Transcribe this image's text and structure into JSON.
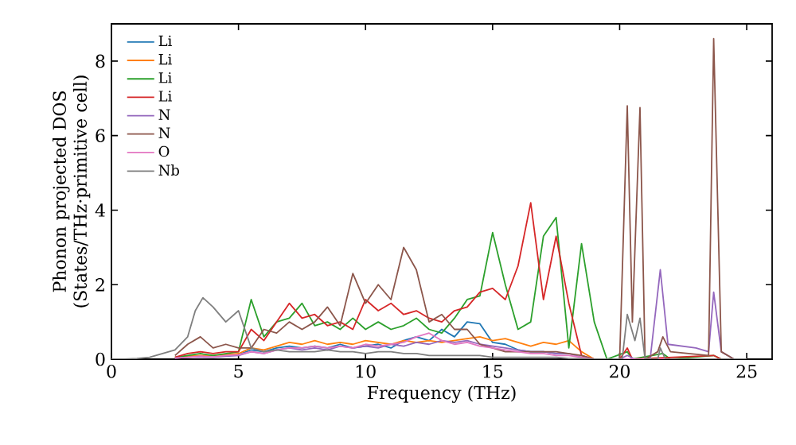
{
  "chart_data": {
    "type": "line",
    "xlabel": "Frequency (THz)",
    "ylabel": "Phonon projected DOS (States/THz·primitive cell)",
    "xlim": [
      0,
      26
    ],
    "ylim": [
      0,
      9
    ],
    "xticks": [
      0,
      5,
      10,
      15,
      20,
      25
    ],
    "yticks": [
      0,
      2,
      4,
      6,
      8
    ],
    "grid": false,
    "legend": "top left",
    "marker": "none",
    "line_style": "solid",
    "series": [
      {
        "name": "Li",
        "color": "#1f77b4",
        "x": [
          4.5,
          5,
          5.5,
          6,
          6.5,
          7,
          7.5,
          8,
          8.5,
          9,
          9.5,
          10,
          10.5,
          11,
          11.5,
          12,
          12.5,
          13,
          13.5,
          14,
          14.5,
          15,
          15.5,
          16,
          16.5,
          17,
          17.5,
          18
        ],
        "values": [
          0.1,
          0.12,
          0.25,
          0.2,
          0.3,
          0.35,
          0.3,
          0.35,
          0.3,
          0.4,
          0.3,
          0.35,
          0.4,
          0.3,
          0.5,
          0.6,
          0.5,
          0.8,
          0.6,
          1.0,
          0.95,
          0.45,
          0.4,
          0.25,
          0.2,
          0.2,
          0.15,
          0.15
        ]
      },
      {
        "name": "Li",
        "color": "#ff7f0e",
        "x": [
          2.5,
          3,
          3.5,
          4,
          4.5,
          5,
          5.5,
          6,
          6.5,
          7,
          7.5,
          8,
          8.5,
          9,
          9.5,
          10,
          10.5,
          11,
          11.5,
          12,
          12.5,
          13,
          13.5,
          14,
          14.5,
          15,
          15.5,
          16,
          16.5,
          17,
          17.5,
          18,
          18.5,
          19
        ],
        "values": [
          0.05,
          0.08,
          0.1,
          0.1,
          0.12,
          0.15,
          0.3,
          0.25,
          0.35,
          0.45,
          0.4,
          0.5,
          0.4,
          0.45,
          0.4,
          0.5,
          0.45,
          0.4,
          0.5,
          0.45,
          0.5,
          0.45,
          0.5,
          0.55,
          0.6,
          0.5,
          0.55,
          0.45,
          0.35,
          0.45,
          0.4,
          0.5,
          0.2,
          0
        ]
      },
      {
        "name": "Li",
        "color": "#2ca02c",
        "x": [
          2.5,
          3,
          3.5,
          4,
          4.5,
          5,
          5.5,
          6,
          6.5,
          7,
          7.5,
          8,
          8.5,
          9,
          9.5,
          10,
          10.5,
          11,
          11.5,
          12,
          12.5,
          13,
          13.5,
          14,
          14.5,
          15,
          15.5,
          16,
          16.5,
          17,
          17.5,
          18,
          18.5,
          19,
          19.5,
          20.3,
          20.5,
          21.7,
          22,
          23.7,
          24,
          25
        ],
        "values": [
          0.05,
          0.1,
          0.15,
          0.1,
          0.15,
          0.2,
          1.6,
          0.6,
          1.0,
          1.1,
          1.5,
          0.9,
          1.0,
          0.8,
          1.1,
          0.8,
          1.0,
          0.8,
          0.9,
          1.1,
          0.8,
          0.7,
          1.1,
          1.6,
          1.7,
          3.4,
          2.0,
          0.8,
          1.0,
          3.3,
          3.8,
          0.3,
          3.1,
          1.0,
          0,
          0.2,
          0,
          0.15,
          0,
          0.1,
          0,
          0
        ]
      },
      {
        "name": "Li",
        "color": "#d62728",
        "x": [
          2.5,
          3,
          3.5,
          4,
          4.5,
          5,
          5.5,
          6,
          6.5,
          7,
          7.5,
          8,
          8.5,
          9,
          9.5,
          10,
          10.5,
          11,
          11.5,
          12,
          12.5,
          13,
          13.5,
          14,
          14.5,
          15,
          15.5,
          16,
          16.5,
          17,
          17.5,
          18,
          18.5,
          19,
          20,
          20.3,
          20.5,
          23.7,
          24,
          25
        ],
        "values": [
          0.05,
          0.15,
          0.2,
          0.15,
          0.2,
          0.2,
          0.8,
          0.5,
          1.0,
          1.5,
          1.1,
          1.2,
          0.9,
          1.0,
          0.8,
          1.6,
          1.3,
          1.5,
          1.2,
          1.3,
          1.1,
          1.0,
          1.3,
          1.4,
          1.8,
          1.9,
          1.6,
          2.5,
          4.2,
          1.6,
          3.3,
          1.5,
          0.1,
          0,
          0,
          0.3,
          0,
          0.1,
          0,
          0
        ]
      },
      {
        "name": "N",
        "color": "#9467bd",
        "x": [
          2.5,
          3,
          3.5,
          4,
          4.5,
          5,
          5.5,
          6,
          6.5,
          7,
          7.5,
          8,
          8.5,
          9,
          9.5,
          10,
          10.5,
          11,
          11.5,
          12,
          12.5,
          13,
          13.5,
          14,
          14.5,
          15,
          15.5,
          16,
          16.5,
          17,
          17.5,
          18,
          18.5,
          19,
          20,
          20.3,
          20.6,
          21.2,
          21.6,
          21.9,
          23,
          23.5,
          23.7,
          24,
          24.5,
          25
        ],
        "values": [
          0.03,
          0.05,
          0.06,
          0.05,
          0.08,
          0.1,
          0.2,
          0.15,
          0.25,
          0.3,
          0.25,
          0.3,
          0.25,
          0.35,
          0.3,
          0.35,
          0.3,
          0.4,
          0.35,
          0.45,
          0.4,
          0.5,
          0.45,
          0.5,
          0.4,
          0.35,
          0.3,
          0.25,
          0.2,
          0.2,
          0.15,
          0.15,
          0.05,
          0,
          0,
          0.1,
          0,
          0,
          2.4,
          0.4,
          0.3,
          0.2,
          1.8,
          0.2,
          0,
          0
        ]
      },
      {
        "name": "N",
        "color": "#8c564b",
        "x": [
          2.5,
          3,
          3.5,
          4,
          4.5,
          5,
          5.5,
          6,
          6.5,
          7,
          7.5,
          8,
          8.5,
          9,
          9.5,
          10,
          10.5,
          11,
          11.5,
          12,
          12.5,
          13,
          13.5,
          14,
          14.5,
          15,
          15.5,
          16,
          16.5,
          17,
          17.5,
          18,
          18.5,
          19,
          20,
          20.3,
          20.5,
          20.8,
          21,
          21.5,
          21.7,
          22,
          23.5,
          23.7,
          24,
          24.5,
          25
        ],
        "values": [
          0.1,
          0.4,
          0.6,
          0.3,
          0.4,
          0.3,
          0.3,
          0.8,
          0.7,
          1.0,
          0.8,
          1.0,
          1.4,
          0.9,
          2.3,
          1.5,
          2.0,
          1.6,
          3.0,
          2.4,
          1.0,
          1.2,
          0.8,
          0.8,
          0.4,
          0.3,
          0.2,
          0.2,
          0.2,
          0.2,
          0.2,
          0.15,
          0.1,
          0,
          0,
          6.8,
          1.0,
          6.75,
          0,
          0.2,
          0.6,
          0.2,
          0.1,
          8.6,
          0.2,
          0,
          0
        ]
      },
      {
        "name": "O",
        "color": "#e377c2",
        "x": [
          2.5,
          3,
          3.5,
          4,
          4.5,
          5,
          5.5,
          6,
          6.5,
          7,
          7.5,
          8,
          8.5,
          9,
          9.5,
          10,
          10.5,
          11,
          11.5,
          12,
          12.5,
          13,
          13.5,
          14,
          14.5,
          15,
          15.5,
          16,
          16.5,
          17,
          17.5,
          18,
          18.5,
          19,
          25
        ],
        "values": [
          0.03,
          0.05,
          0.08,
          0.06,
          0.1,
          0.12,
          0.2,
          0.15,
          0.25,
          0.3,
          0.3,
          0.35,
          0.3,
          0.35,
          0.3,
          0.4,
          0.35,
          0.4,
          0.45,
          0.6,
          0.7,
          0.5,
          0.4,
          0.45,
          0.35,
          0.3,
          0.25,
          0.2,
          0.15,
          0.15,
          0.1,
          0.1,
          0.05,
          0,
          0
        ]
      },
      {
        "name": "Nb",
        "color": "#7f7f7f",
        "x": [
          0,
          0.5,
          1,
          1.5,
          2,
          2.5,
          3,
          3.3,
          3.6,
          4,
          4.5,
          5,
          5.5,
          6,
          6.5,
          7,
          7.5,
          8,
          8.5,
          9,
          9.5,
          10,
          10.5,
          11,
          11.5,
          12,
          12.5,
          13,
          13.5,
          14,
          14.5,
          15,
          15.5,
          16,
          16.5,
          17,
          17.5,
          18,
          18.5,
          19,
          20.1,
          20.3,
          20.6,
          20.8,
          21,
          21.5,
          21.6,
          21.8,
          25
        ],
        "values": [
          0,
          0,
          0.02,
          0.05,
          0.15,
          0.25,
          0.6,
          1.3,
          1.65,
          1.4,
          1.0,
          1.3,
          0.3,
          0.2,
          0.25,
          0.2,
          0.2,
          0.2,
          0.25,
          0.2,
          0.2,
          0.15,
          0.2,
          0.2,
          0.15,
          0.15,
          0.1,
          0.1,
          0.1,
          0.1,
          0.1,
          0.05,
          0.05,
          0.05,
          0.05,
          0.05,
          0.05,
          0.02,
          0.02,
          0,
          0,
          1.2,
          0.5,
          1.1,
          0,
          0,
          0.3,
          0,
          0
        ]
      }
    ]
  }
}
